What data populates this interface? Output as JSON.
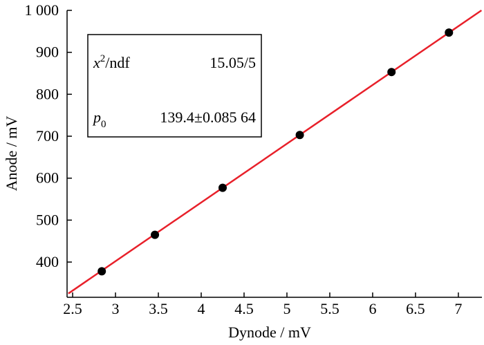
{
  "chart_data": {
    "type": "scatter",
    "x_label": "Dynode / mV",
    "y_label": "Anode / mV",
    "series": [
      {
        "color": "#000000",
        "x": [
          2.84,
          3.46,
          4.25,
          5.15,
          6.22,
          6.89
        ],
        "values": [
          378,
          465,
          577,
          703,
          853,
          947
        ]
      }
    ],
    "fit": {
      "color": "#e8202a",
      "x": [
        2.45,
        7.27
      ],
      "values": [
        325,
        1000
      ]
    },
    "xlim": [
      2.435,
      7.275
    ],
    "ylim": [
      316,
      1000
    ],
    "xticks": [
      2.5,
      3,
      3.5,
      4,
      4.5,
      5,
      5.5,
      6,
      6.5,
      7
    ],
    "yticks": [
      400,
      500,
      600,
      700,
      800,
      900,
      {
        "value": 1000,
        "label": "1 000"
      }
    ],
    "stats": {
      "chi_label": "x",
      "chi_sup": "2",
      "chi_rest": "/ndf",
      "chi_value": "15.05/5",
      "p_label": "p",
      "p_sub": "0",
      "p_value": "139.4±0.085 64"
    }
  }
}
